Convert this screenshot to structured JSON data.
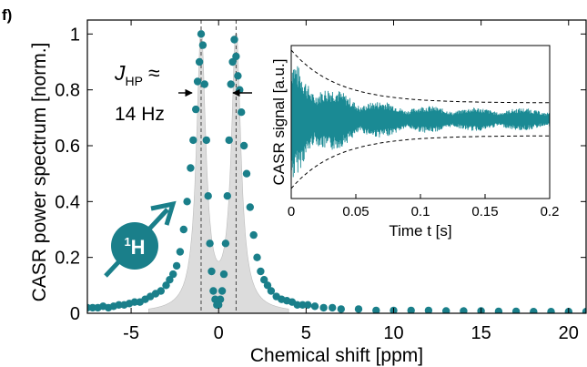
{
  "panel_label": "f)",
  "annotation": {
    "j_symbol": "J",
    "j_subscript": "HP",
    "approx": "≈",
    "value": "14 Hz"
  },
  "nucleus_badge": {
    "mass_number": "1",
    "element": "H",
    "color": "#1a7f8a"
  },
  "colors": {
    "points": "#1a7f8a",
    "fill": "#dcdcdc",
    "signal": "#1a8a94"
  },
  "chart_data": [
    {
      "type": "scatter",
      "xlabel": "Chemical shift [ppm]",
      "ylabel": "CASR power spectrum [norm.]",
      "xlim": [
        -7.5,
        21
      ],
      "ylim": [
        0,
        1.05
      ],
      "xticks": [
        -5,
        0,
        5,
        10,
        15,
        20
      ],
      "yticks": [
        0,
        0.2,
        0.4,
        0.6,
        0.8,
        1
      ],
      "peaks_ppm": [
        -1,
        1
      ],
      "grid": false,
      "series": [
        {
          "x": [
            -7.5,
            -7.2,
            -6.9,
            -6.6,
            -6.3,
            -6.0,
            -5.7,
            -5.4,
            -5.1,
            -4.8,
            -4.5,
            -4.2,
            -3.9,
            -3.6,
            -3.3,
            -3.0,
            -2.8,
            -2.6,
            -2.4,
            -2.2,
            -2.0,
            -1.8,
            -1.6,
            -1.45,
            -1.3,
            -1.2,
            -1.1,
            -1.0,
            -0.9,
            -0.8,
            -0.7,
            -0.6,
            -0.5,
            -0.4,
            -0.3,
            -0.2,
            -0.1,
            0.0,
            0.1,
            0.2,
            0.3,
            0.4,
            0.5,
            0.6,
            0.7,
            0.8,
            0.9,
            1.0,
            1.1,
            1.2,
            1.3,
            1.45,
            1.6,
            1.8,
            2.0,
            2.2,
            2.4,
            2.6,
            2.8,
            3.0,
            3.3,
            3.6,
            3.9,
            4.2,
            4.5,
            4.8,
            5.1,
            5.5,
            6.0,
            6.5,
            7.0,
            8.0,
            9.0,
            10.0,
            11.0,
            12.0,
            13.0,
            14.0,
            15.0,
            16.0,
            17.0,
            18.0,
            19.0,
            20.0,
            21.0
          ],
          "y": [
            0.02,
            0.02,
            0.02,
            0.025,
            0.02,
            0.025,
            0.03,
            0.03,
            0.035,
            0.04,
            0.04,
            0.05,
            0.06,
            0.07,
            0.08,
            0.1,
            0.12,
            0.14,
            0.17,
            0.22,
            0.3,
            0.4,
            0.52,
            0.62,
            0.73,
            0.83,
            0.9,
            1.0,
            0.96,
            0.82,
            0.62,
            0.42,
            0.25,
            0.15,
            0.08,
            0.05,
            0.03,
            0.03,
            0.05,
            0.08,
            0.14,
            0.25,
            0.42,
            0.62,
            0.82,
            0.9,
            0.98,
            0.92,
            0.85,
            0.8,
            0.72,
            0.6,
            0.5,
            0.38,
            0.28,
            0.2,
            0.15,
            0.12,
            0.1,
            0.08,
            0.06,
            0.05,
            0.045,
            0.04,
            0.03,
            0.03,
            0.03,
            0.025,
            0.02,
            0.02,
            0.015,
            0.015,
            0.01,
            0.01,
            0.01,
            0.01,
            0.008,
            0.008,
            0.008,
            0.007,
            0.007,
            0.006,
            0.006,
            0.006,
            0.006
          ]
        }
      ]
    },
    {
      "type": "line",
      "xlabel": "Time t [s]",
      "ylabel": "CASR signal [a.u.]",
      "xlim": [
        0,
        0.2
      ],
      "xticks": [
        0,
        0.05,
        0.1,
        0.15,
        0.2
      ],
      "envelope": "exponential decay (dashed)",
      "grid": false
    }
  ]
}
